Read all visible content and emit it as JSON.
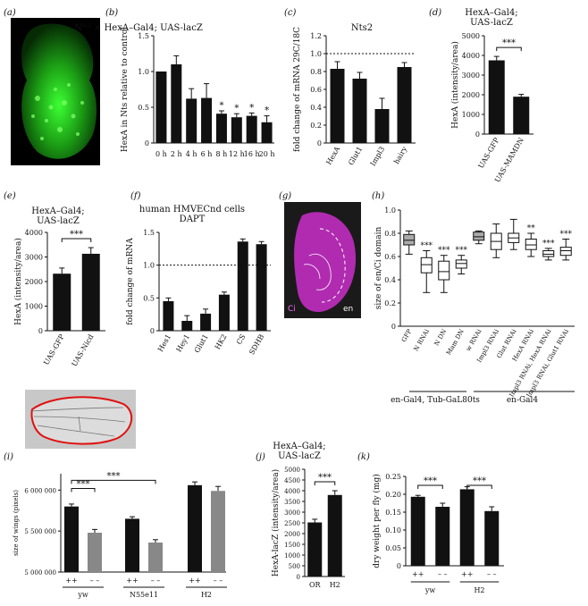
{
  "panels": {
    "a": {
      "label": "(a)"
    },
    "b": {
      "label": "(b)"
    },
    "c": {
      "label": "(c)"
    },
    "d": {
      "label": "(d)"
    },
    "e": {
      "label": "(e)"
    },
    "f": {
      "label": "(f)"
    },
    "g": {
      "label": "(g)",
      "ci": "Ci",
      "en": "en"
    },
    "h": {
      "label": "(h)"
    },
    "i": {
      "label": "(i)"
    },
    "j": {
      "label": "(j)"
    },
    "k": {
      "label": "(k)"
    }
  },
  "colors": {
    "black": "#111111",
    "grey": "#888888",
    "gfp_green": "#2fd12a",
    "magenta": "#cc33cc",
    "wing_outline": "#e01010"
  },
  "chart_data": [
    {
      "id": "b",
      "type": "bar",
      "title": "Nᵗˢ² × HexA–Gal4; UAS-lacZ",
      "ylabel": "HexA in Nts relative to control",
      "categories": [
        "0 h",
        "2 h",
        "4 h",
        "6 h",
        "8 h",
        "12 h",
        "16 h",
        "20 h"
      ],
      "values": [
        1.0,
        1.1,
        0.62,
        0.63,
        0.41,
        0.36,
        0.38,
        0.29
      ],
      "errors": [
        0,
        0.12,
        0.14,
        0.2,
        0.04,
        0.05,
        0.04,
        0.09
      ],
      "significance": [
        "",
        "",
        "",
        "",
        "*",
        "*",
        "*",
        "*"
      ],
      "yticks": [
        "0",
        "0.5",
        "1.0",
        "1.5"
      ],
      "ylim": [
        0,
        1.5
      ]
    },
    {
      "id": "c",
      "type": "bar",
      "title": "Nts2",
      "ylabel": "fold change of mRNA 29C/18C",
      "categories": [
        "HexA",
        "Glut1",
        "Impl3",
        "hairy"
      ],
      "values": [
        0.83,
        0.72,
        0.38,
        0.85
      ],
      "errors": [
        0.08,
        0.07,
        0.12,
        0.05
      ],
      "yticks": [
        "0",
        "0.2",
        "0.4",
        "0.6",
        "0.8",
        "1.0",
        "1.2"
      ],
      "ylim": [
        0,
        1.2
      ],
      "reference_line": 1.0
    },
    {
      "id": "d",
      "type": "bar",
      "title": "HexA–Gal4;\nUAS-lacZ",
      "ylabel": "HexA (intensity/area)",
      "categories": [
        "UAS-GFP",
        "UAS-MAMDN"
      ],
      "values": [
        3750,
        1900
      ],
      "errors": [
        200,
        120
      ],
      "significance_bracket": "***",
      "yticks": [
        "0",
        "1000",
        "2000",
        "3000",
        "4000",
        "5000"
      ],
      "ylim": [
        0,
        5000
      ]
    },
    {
      "id": "e",
      "type": "bar",
      "title": "HexA–Gal4;\nUAS-lacZ",
      "ylabel": "HexA (intensity/area)",
      "categories": [
        "UAS-GFP",
        "UAS-Nicd"
      ],
      "values": [
        2320,
        3130
      ],
      "errors": [
        230,
        250
      ],
      "significance_bracket": "***",
      "yticks": [
        "0",
        "1000",
        "2000",
        "3000",
        "4000"
      ],
      "ylim": [
        0,
        4000
      ]
    },
    {
      "id": "f",
      "type": "bar",
      "title": "human HMVECnd cells\nDAPT",
      "ylabel": "fold change of mRNA",
      "categories": [
        "Hes1",
        "Hey1",
        "Glut1",
        "HK2",
        "CS",
        "SDHB"
      ],
      "values": [
        0.45,
        0.15,
        0.26,
        0.55,
        1.36,
        1.32
      ],
      "errors": [
        0.05,
        0.08,
        0.07,
        0.04,
        0.04,
        0.04
      ],
      "yticks": [
        "0",
        "0.5",
        "1.0",
        "1.5"
      ],
      "ylim": [
        0,
        1.5
      ],
      "reference_line": 1.0
    },
    {
      "id": "h",
      "type": "box",
      "ylabel": "size of en/Ci domain",
      "categories": [
        "GFP",
        "N RNAi",
        "N DN",
        "Mam DN",
        "w RNAi",
        "Impl3 RNAi",
        "Glut RNAi",
        "HexA RNAi",
        "Impl3 RNAi, HexA RNAi",
        "Impl3 RNAi, Glut1 RNAi"
      ],
      "boxes": [
        {
          "min": 0.62,
          "q1": 0.7,
          "median": 0.74,
          "q3": 0.79,
          "max": 0.82,
          "fill": "grey"
        },
        {
          "min": 0.29,
          "q1": 0.46,
          "median": 0.53,
          "q3": 0.59,
          "max": 0.65,
          "fill": "white"
        },
        {
          "min": 0.29,
          "q1": 0.4,
          "median": 0.47,
          "q3": 0.56,
          "max": 0.61,
          "fill": "white"
        },
        {
          "min": 0.45,
          "q1": 0.5,
          "median": 0.54,
          "q3": 0.57,
          "max": 0.61,
          "fill": "white"
        },
        {
          "min": 0.71,
          "q1": 0.74,
          "median": 0.77,
          "q3": 0.81,
          "max": 0.82,
          "fill": "grey"
        },
        {
          "min": 0.59,
          "q1": 0.66,
          "median": 0.73,
          "q3": 0.8,
          "max": 0.88,
          "fill": "white"
        },
        {
          "min": 0.66,
          "q1": 0.72,
          "median": 0.76,
          "q3": 0.8,
          "max": 0.92,
          "fill": "white"
        },
        {
          "min": 0.6,
          "q1": 0.66,
          "median": 0.7,
          "q3": 0.75,
          "max": 0.8,
          "fill": "white"
        },
        {
          "min": 0.57,
          "q1": 0.6,
          "median": 0.62,
          "q3": 0.65,
          "max": 0.67,
          "fill": "white"
        },
        {
          "min": 0.57,
          "q1": 0.61,
          "median": 0.65,
          "q3": 0.68,
          "max": 0.75,
          "fill": "white"
        }
      ],
      "significance": [
        "",
        "***",
        "***",
        "***",
        "",
        "",
        "",
        "**",
        "***",
        "***"
      ],
      "yticks": [
        "0",
        "0.2",
        "0.4",
        "0.6",
        "0.8",
        "1.0"
      ],
      "ylim": [
        0,
        1.0
      ],
      "group_labels": [
        "en-Gal4, Tub-GaL80ts",
        "en-Gal4"
      ]
    },
    {
      "id": "i",
      "type": "bar",
      "ylabel": "size of wings (pixels)",
      "categories": [
        "++",
        "– –",
        "++",
        "– –",
        "++",
        "– –"
      ],
      "group_labels": [
        "yw",
        "N55e11",
        "H2"
      ],
      "values": [
        5800000,
        5480000,
        5650000,
        5360000,
        6060000,
        5990000
      ],
      "errors": [
        30000,
        40000,
        25000,
        35000,
        40000,
        55000
      ],
      "fills": [
        "black",
        "grey",
        "black",
        "grey",
        "black",
        "grey"
      ],
      "significance_brackets": [
        "***",
        "***"
      ],
      "yticks": [
        "5 000 000",
        "5 500 000",
        "6 000 000"
      ],
      "ylim": [
        5000000,
        6200000
      ]
    },
    {
      "id": "j",
      "type": "bar",
      "title": "HexA–Gal4;\nUAS-lacZ",
      "ylabel": "HexA-lacZ (intensity/area)",
      "categories": [
        "OR",
        "H2"
      ],
      "values": [
        2520,
        3800
      ],
      "errors": [
        150,
        200
      ],
      "significance_bracket": "***",
      "yticks": [
        "0",
        "500",
        "1000",
        "1500",
        "2000",
        "2500",
        "3000",
        "3500",
        "4000",
        "4500",
        "5000"
      ],
      "ylim": [
        0,
        5000
      ]
    },
    {
      "id": "k",
      "type": "bar",
      "ylabel": "dry weight per fly (mg)",
      "categories": [
        "++",
        "– –",
        "++",
        "– –"
      ],
      "group_labels": [
        "yw",
        "H2"
      ],
      "values": [
        0.193,
        0.165,
        0.214,
        0.153
      ],
      "errors": [
        0.004,
        0.01,
        0.007,
        0.012
      ],
      "significance_brackets": [
        "***",
        "***"
      ],
      "yticks": [
        "0",
        "0.05",
        "0.10",
        "0.15",
        "0.20",
        "0.25"
      ],
      "ylim": [
        0,
        0.25
      ]
    }
  ]
}
